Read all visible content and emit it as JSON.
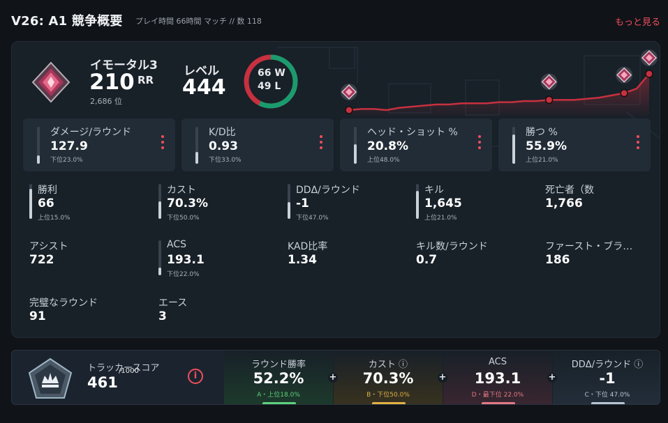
{
  "header": {
    "title": "V26: A1 競争概要",
    "subtitle": "プレイ時間 66時間 マッチ // 数 118",
    "more_label": "もっと見る"
  },
  "rank": {
    "name": "イモータル3",
    "rr_value": "210",
    "rr_unit": "RR",
    "position": "2,686 位"
  },
  "level": {
    "label": "レベル",
    "value": "444"
  },
  "winloss": {
    "wins": "66 W",
    "losses": "49 L",
    "win_count": 66,
    "loss_count": 49
  },
  "rr_history": {
    "values": [
      18,
      19,
      19,
      18,
      20,
      21,
      22,
      23,
      23,
      24,
      24,
      24,
      25,
      25,
      26,
      26,
      27,
      27,
      27,
      28,
      29,
      31,
      33,
      37,
      50
    ],
    "markers": [
      0,
      16,
      22,
      24
    ]
  },
  "stat_cards": [
    {
      "label": "ダメージ/ラウンド",
      "value": "127.9",
      "rank": "下位23.0%",
      "level": 0.23
    },
    {
      "label": "K/D比",
      "value": "0.93",
      "rank": "下位33.0%",
      "level": 0.33
    },
    {
      "label": "ヘッド・ショット %",
      "value": "20.8%",
      "rank": "上位48.0%",
      "level": 0.52
    },
    {
      "label": "勝つ %",
      "value": "55.9%",
      "rank": "上位21.0%",
      "level": 0.79
    }
  ],
  "grid_stats": [
    {
      "label": "勝利",
      "value": "66",
      "rank": "上位15.0%",
      "level": 0.85
    },
    {
      "label": "カスト",
      "value": "70.3%",
      "rank": "下位50.0%",
      "level": 0.5
    },
    {
      "label": "DDΔ/ラウンド",
      "value": "-1",
      "rank": "下位47.0%",
      "level": 0.47
    },
    {
      "label": "キル",
      "value": "1,645",
      "rank": "上位21.0%",
      "level": 0.79
    },
    {
      "label": "死亡者（数",
      "value": "1,766"
    },
    {
      "label": "アシスト",
      "value": "722"
    },
    {
      "label": "ACS",
      "value": "193.1",
      "rank": "下位22.0%",
      "level": 0.22
    },
    {
      "label": "KAD比率",
      "value": "1.34"
    },
    {
      "label": "キル数/ラウンド",
      "value": "0.7"
    },
    {
      "label": "ファースト・ブラ…",
      "value": "186"
    },
    {
      "label": "完璧なラウンド",
      "value": "91"
    },
    {
      "label": "エース",
      "value": "3"
    }
  ],
  "tracker": {
    "label": "トラッカースコア",
    "value": "461",
    "max": "/1000",
    "info_icon": "i"
  },
  "score_segments": [
    {
      "label": "ラウンド勝率",
      "value": "52.2%",
      "grade": "A・上位18.0%",
      "color": "#5fd07a",
      "bg": "#1d3a2c"
    },
    {
      "label": "カスト ⓘ",
      "value": "70.3%",
      "grade": "B・下位50.0%",
      "color": "#e2b144",
      "bg": "#38321f"
    },
    {
      "label": "ACS",
      "value": "193.1",
      "grade": "D・最下位 22.0%",
      "color": "#e07a86",
      "bg": "#3a2630"
    },
    {
      "label": "DDΔ/ラウンド ⓘ",
      "value": "-1",
      "grade": "C・下位 47.0%",
      "color": "#b7c4d2",
      "bg": "#232e3a"
    }
  ],
  "colors": {
    "accent": "#ef4f5d",
    "win": "#1a9b6e",
    "loss": "#c7313f"
  }
}
